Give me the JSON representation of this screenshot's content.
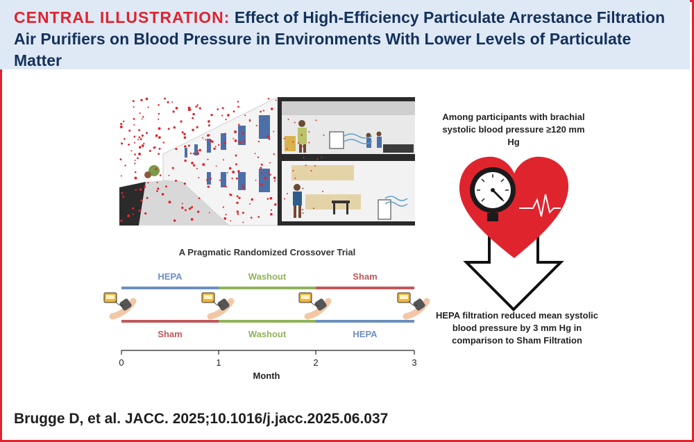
{
  "header": {
    "lead": "CENTRAL ILLUSTRATION:",
    "title": "Effect of High-Efficiency Particulate Arrestance Filtration Air Purifiers on Blood Pressure in Environments With Lower Levels of Particulate Matter"
  },
  "trial": {
    "title": "A Pragmatic Randomized Crossover Trial",
    "top_arm": [
      "HEPA",
      "Washout",
      "Sham"
    ],
    "bottom_arm": [
      "Sham",
      "Washout",
      "HEPA"
    ],
    "ticks": [
      "0",
      "1",
      "2",
      "3"
    ],
    "axis_label": "Month"
  },
  "finding": {
    "population": "Among participants with brachial systolic blood pressure ≥120 mm Hg",
    "result": "HEPA filtration reduced mean systolic blood pressure by 3 mm Hg in comparison to Sham Filtration"
  },
  "citation": "Brugge D, et al. JACC. 2025;10.1016/j.jacc.2025.06.037",
  "colors": {
    "hepa": "#6b8fbf",
    "washout": "#8fb35a",
    "sham": "#c2585a",
    "accent": "#e0242e",
    "navy": "#13315c"
  },
  "icons": [
    "street-scene-illustration",
    "apartment-interior-illustration",
    "blood-pressure-cuff-icon",
    "heart-gauge-icon",
    "down-arrow-icon"
  ]
}
